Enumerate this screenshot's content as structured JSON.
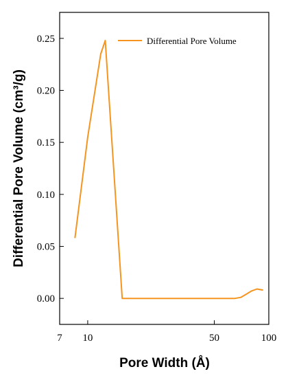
{
  "chart_data": {
    "type": "line",
    "xlabel": "Pore Width (Å)",
    "ylabel": "Differential Pore Volume (cm³/g)",
    "x_scale": "log",
    "xlim": [
      7,
      100
    ],
    "ylim": [
      -0.025,
      0.275
    ],
    "x_ticks": [
      {
        "value": 7,
        "label": "7"
      },
      {
        "value": 10,
        "label": "10"
      },
      {
        "value": 50,
        "label": "50"
      },
      {
        "value": 100,
        "label": "100"
      }
    ],
    "y_ticks": [
      {
        "value": 0.0,
        "label": "0.00"
      },
      {
        "value": 0.05,
        "label": "0.05"
      },
      {
        "value": 0.1,
        "label": "0.10"
      },
      {
        "value": 0.15,
        "label": "0.15"
      },
      {
        "value": 0.2,
        "label": "0.20"
      },
      {
        "value": 0.25,
        "label": "0.25"
      }
    ],
    "grid": false,
    "legend_position": "top-right",
    "series": [
      {
        "name": "Differential Pore Volume",
        "color": "#f5941e",
        "x": [
          8.5,
          10.0,
          11.8,
          12.5,
          15.5,
          20,
          30,
          40,
          50,
          65,
          70,
          75,
          80,
          86,
          93
        ],
        "y": [
          0.058,
          0.155,
          0.235,
          0.248,
          0.0,
          0.0,
          0.0,
          0.0,
          0.0,
          0.0,
          0.001,
          0.004,
          0.007,
          0.009,
          0.008
        ]
      }
    ]
  }
}
